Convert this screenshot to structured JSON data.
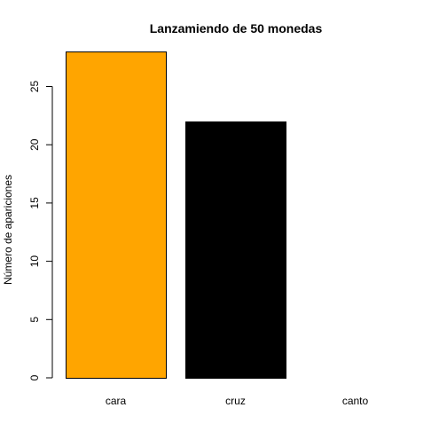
{
  "chart_data": {
    "type": "bar",
    "title": "Lanzamiendo de 50 monedas",
    "xlabel": "",
    "ylabel": "Número de apariciones",
    "categories": [
      "cara",
      "cruz",
      "canto"
    ],
    "values": [
      28,
      22,
      0
    ],
    "colors": [
      "#FFA500",
      "#000000",
      "#FFFFFF"
    ],
    "bar_border_color": "#000000",
    "ylim": [
      0,
      28
    ],
    "y_ticks": [
      0,
      5,
      10,
      15,
      20,
      25
    ],
    "y_tick_labels": [
      "0",
      "5",
      "10",
      "15",
      "20",
      "25"
    ],
    "grid": false,
    "legend": "none"
  }
}
